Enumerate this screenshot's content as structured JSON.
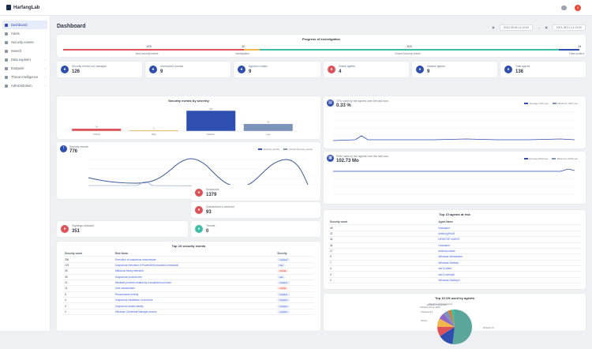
{
  "app": {
    "logo_text": "HarfangLab",
    "notif_count": "4"
  },
  "sidebar": {
    "items": [
      {
        "label": "Dashboard",
        "active": true,
        "chevron": false
      },
      {
        "label": "Alerts",
        "active": false,
        "chevron": false
      },
      {
        "label": "Security events",
        "active": false,
        "chevron": false
      },
      {
        "label": "Search",
        "active": false,
        "chevron": false
      },
      {
        "label": "Data explorer",
        "active": false,
        "chevron": true
      },
      {
        "label": "Endpoint",
        "active": false,
        "chevron": true
      },
      {
        "label": "Threat intelligence",
        "active": false,
        "chevron": true
      },
      {
        "label": "Administration",
        "active": false,
        "chevron": true
      }
    ]
  },
  "header": {
    "title": "Dashboard",
    "date_from": "2021-08-05 11:10:50",
    "date_to": "2021-08-12 11:10:50"
  },
  "progress": {
    "title": "Progress of investigation",
    "new_count": "129",
    "investigation_count": "10",
    "closed_count": "103",
    "false_count": "14",
    "new_label": "New security events",
    "investigation_label": "Investigation",
    "closed_label": "Closed Security events",
    "false_label": "False positive",
    "colors": {
      "new": "#e0525a",
      "investigation": "#f0b84a",
      "closed": "#3dbfa6",
      "false": "#2f4fb0"
    }
  },
  "stats_top": [
    {
      "label": "Security events not managed",
      "value": "126",
      "color": "#2f4fb0",
      "icon": "alert-icon"
    },
    {
      "label": "Unresolved domain",
      "value": "9",
      "color": "#2f4fb0",
      "icon": "globe-icon"
    },
    {
      "label": "Agents to watch",
      "value": "9",
      "color": "#2f4fb0",
      "icon": "eye-icon"
    },
    {
      "label": "Online agents",
      "value": "4",
      "color": "#e0525a",
      "icon": "agent-online-icon"
    },
    {
      "label": "Inactive agents",
      "value": "9",
      "color": "#2f4fb0",
      "icon": "agent-inactive-icon"
    },
    {
      "label": "Total agents",
      "value": "136",
      "color": "#2f4fb0",
      "icon": "agents-icon"
    }
  ],
  "severity_chart": {
    "title": "Security events by severity",
    "legend": [
      "Critical",
      "High",
      "Medium",
      "Low"
    ],
    "chart_data": {
      "type": "bar",
      "categories": [
        "Critical",
        "High",
        "Medium",
        "Low"
      ],
      "values": [
        14,
        3,
        120,
        42
      ],
      "colors": [
        "#e0525a",
        "#f0b84a",
        "#2f4fb0",
        "#7b93b8"
      ],
      "ylim": [
        0,
        140
      ]
    }
  },
  "cpu_chart": {
    "title": "CPU used by the agents over the last hour",
    "value": "0.33 %",
    "legend": [
      "Average CPU use",
      "Maximum CPU use"
    ]
  },
  "ram_chart": {
    "title": "RAM used by the agents over the last hour",
    "value": "102.73 Mo",
    "legend": [
      "Average RAM use",
      "Maximum RAM use"
    ]
  },
  "events_chart": {
    "title": "Security events",
    "value": "776",
    "legend": [
      "Security events",
      "Critical Security events"
    ]
  },
  "stats_mid": [
    {
      "label": "Suspicious",
      "value": "1379",
      "color": "#e0525a",
      "icon": "suspicious-icon"
    },
    {
      "label": "Quarantined & resolved",
      "value": "93",
      "color": "#e0525a",
      "icon": "quarantine-icon"
    },
    {
      "label": "Sightings detected",
      "value": "351",
      "color": "#e0525a",
      "icon": "sighting-icon"
    },
    {
      "label": "Threats",
      "value": "0",
      "color": "#3dbfa6",
      "icon": "threat-icon"
    }
  ],
  "top_events": {
    "title": "Top 10 security events",
    "columns": [
      "Security count",
      "Rule Name",
      "Severity"
    ],
    "rows": [
      {
        "count": "330",
        "name": "Execution of suspicious ransomware",
        "severity": "medium"
      },
      {
        "count": "175",
        "name": "Suspicious execution of PowerShell encoded commands",
        "severity": "low"
      },
      {
        "count": "25",
        "name": "Malicious binary detected",
        "severity": "critical"
      },
      {
        "count": "25",
        "name": "Suspicious process tree",
        "severity": "low"
      },
      {
        "count": "11",
        "name": "Mimikatz process created by a suspicious process",
        "severity": "medium"
      },
      {
        "count": "11",
        "name": "User ransomware",
        "severity": "critical"
      },
      {
        "count": "5",
        "name": "Ransomware activity",
        "severity": "medium"
      },
      {
        "count": "4",
        "name": "Suspicious installation of services",
        "severity": "medium"
      },
      {
        "count": "3",
        "name": "Suspicious Adobe activity",
        "severity": "medium"
      },
      {
        "count": "2",
        "name": "Windows Credential Manager access",
        "severity": "medium"
      }
    ]
  },
  "top_agents": {
    "title": "Top 10 agents at risk",
    "columns": [
      "Security count",
      "Agent Name"
    ],
    "rows": [
      {
        "count": "49",
        "name": "Hostname"
      },
      {
        "count": "47",
        "name": "desktop-jfha19"
      },
      {
        "count": "41",
        "name": "DESKTOP-AGENT"
      },
      {
        "count": "31",
        "name": "Hostname"
      },
      {
        "count": "17",
        "name": "desktop-iuaezk"
      },
      {
        "count": "9",
        "name": "Windows-Workstation"
      },
      {
        "count": "7",
        "name": "Windows-Desktop"
      },
      {
        "count": "4",
        "name": "win10-client"
      },
      {
        "count": "3",
        "name": "win10-tomcat2"
      },
      {
        "count": "2",
        "name": "Windows-Desktop2"
      }
    ]
  },
  "os_chart": {
    "title": "Top 10 OS used by agents",
    "chart_data": {
      "type": "pie",
      "labels": [
        "Windows 10",
        "Windows Server 2016 Standard",
        "Windows 7",
        "Ubuntu",
        "Windows 8.1",
        "Windows Server 2019",
        "Windows 7 Entreprise",
        "Windows 10 Professional"
      ],
      "values": [
        52,
        14,
        9,
        8,
        6,
        5,
        3,
        3
      ],
      "colors": [
        "#5aa69a",
        "#2f4fb0",
        "#e0525a",
        "#f0b84a",
        "#9067c6",
        "#7b93b8",
        "#d97a2b",
        "#3dbfa6"
      ]
    }
  }
}
